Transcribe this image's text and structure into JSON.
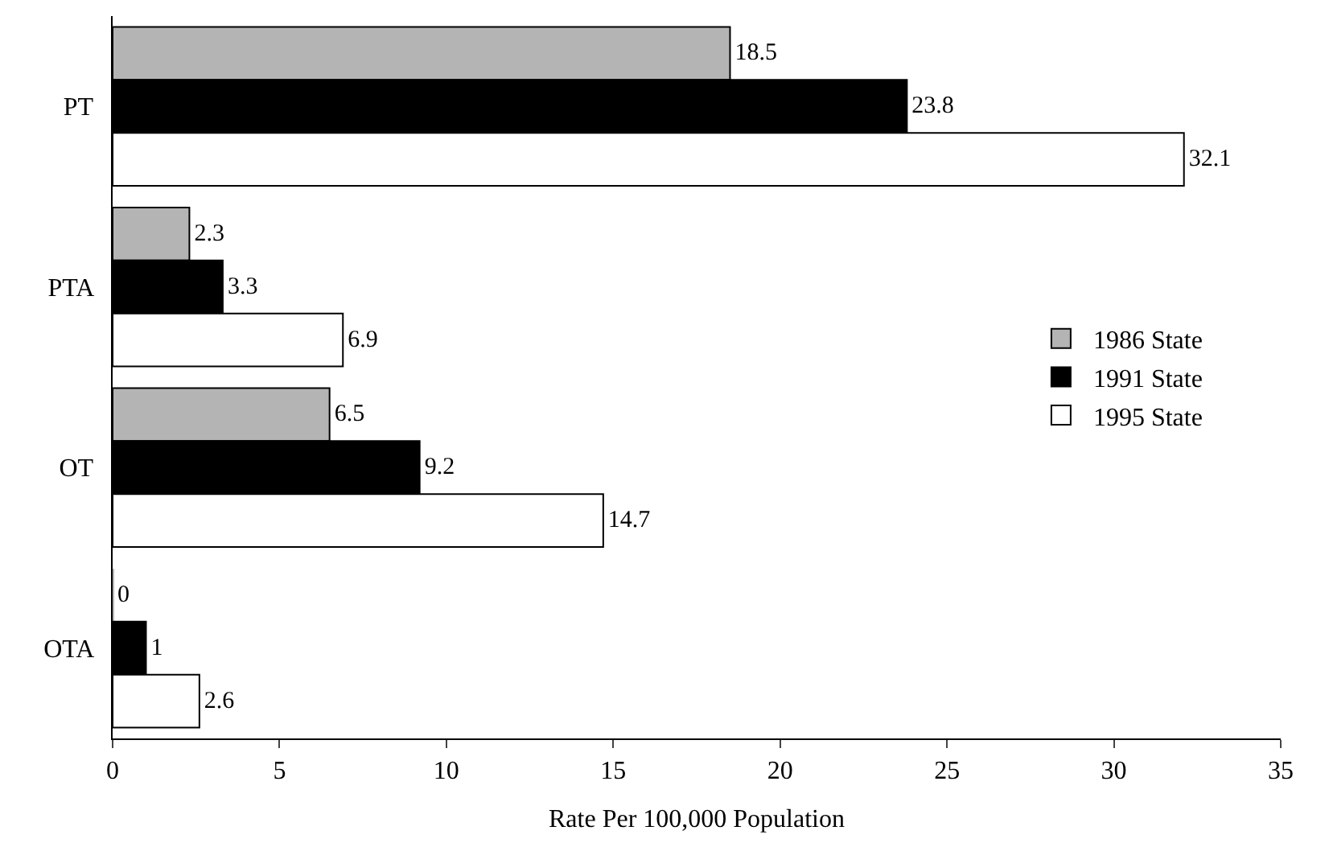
{
  "chart_data": {
    "type": "bar",
    "orientation": "horizontal",
    "xlabel": "Rate Per 100,000 Population",
    "categories": [
      "PT",
      "PTA",
      "OT",
      "OTA"
    ],
    "series": [
      {
        "name": "1986 State",
        "color": "#b4b4b4",
        "values": [
          18.5,
          2.3,
          6.5,
          0
        ]
      },
      {
        "name": "1991 State",
        "color": "#000000",
        "values": [
          23.8,
          3.3,
          9.2,
          1
        ]
      },
      {
        "name": "1995 State",
        "color": "#ffffff",
        "values": [
          32.1,
          6.9,
          14.7,
          2.6
        ]
      }
    ],
    "xlim": [
      0,
      35
    ],
    "xticks": [
      0,
      5,
      10,
      15,
      20,
      25,
      30,
      35
    ],
    "data_labels": true,
    "legend": "right"
  }
}
